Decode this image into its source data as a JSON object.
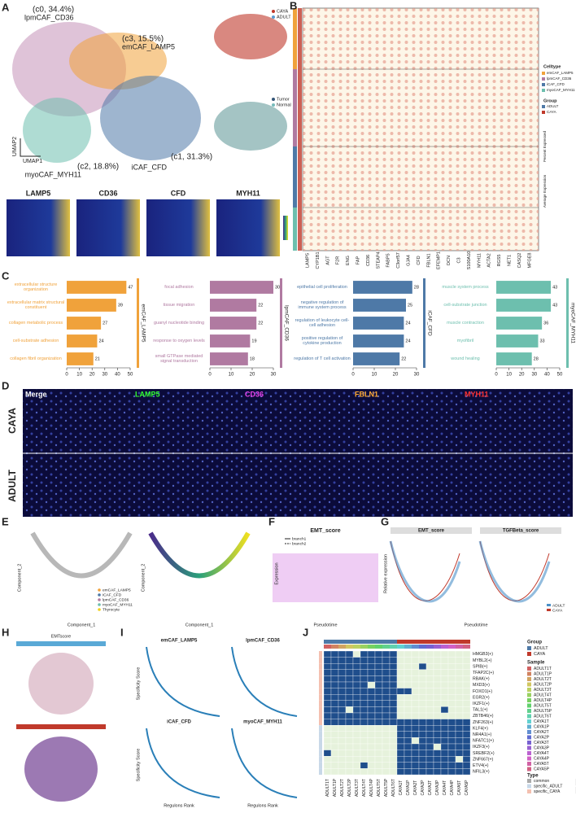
{
  "panel_labels": [
    "A",
    "B",
    "C",
    "D",
    "E",
    "F",
    "G",
    "H",
    "I",
    "J"
  ],
  "panel_a": {
    "clusters": [
      {
        "name": "lpmCAF_CD36",
        "label": "(c0, 34.4%)"
      },
      {
        "name": "emCAF_LAMP5",
        "label": "(c3, 15.5%)"
      },
      {
        "name": "myoCAF_MYH11",
        "label": "(c2, 18.8%)"
      },
      {
        "name": "iCAF_CFD",
        "label": "(c1, 31.3%)"
      }
    ],
    "x_label": "UMAP1",
    "y_label": "UMAP2",
    "genes": [
      "LAMP5",
      "CD36",
      "CFD",
      "MYH11"
    ],
    "legend_group": [
      "CAYA",
      "ADULT"
    ],
    "legend_tissue": [
      "Tumor",
      "Normal"
    ]
  },
  "panel_b": {
    "genes": [
      "LAMP5",
      "CYP1B1",
      "AGT",
      "F2R",
      "ENG",
      "FAP",
      "CD36",
      "STEAP4",
      "FABP5",
      "C3orf57",
      "GJA4",
      "CFD",
      "FBLN1",
      "EFEMP1",
      "DCN",
      "C3",
      "S100A10",
      "MYH11",
      "ACTA2",
      "RGS5",
      "NET1",
      "CASQ2",
      "MFGE8"
    ],
    "celltype_title": "Celltype",
    "celltypes": [
      "emCAF_LAMP5",
      "lpmCAF_CD36",
      "iCAF_CFD",
      "myoCAF_MYH11"
    ],
    "group_title": "Group",
    "groups": [
      "ADULT",
      "CAYA"
    ],
    "size_title": "Percent Expressed",
    "color_title": "Average Expression"
  },
  "chart_data": [
    {
      "type": "bar",
      "orientation": "horizontal",
      "title": "emCAF_LAMP5",
      "color": "#f0a23b",
      "categories": [
        "extracellular structure organization",
        "extracellular matrix structural constituent",
        "collagen metabolic process",
        "cell-substrate adhesion",
        "collagen fibril organization"
      ],
      "values": [
        47,
        39,
        27,
        24,
        21
      ],
      "xlim": [
        0,
        50
      ],
      "xticks": [
        0,
        10,
        20,
        30,
        40,
        50
      ]
    },
    {
      "type": "bar",
      "orientation": "horizontal",
      "title": "lpmCAF_CD36",
      "color": "#b07aa1",
      "categories": [
        "focal adhesion",
        "tissue migration",
        "guanyl nucleotide binding",
        "response to oxygen levels",
        "small GTPase mediated signal transduction"
      ],
      "values": [
        30,
        22,
        22,
        19,
        18
      ],
      "xlim": [
        0,
        30
      ],
      "xticks": [
        0,
        10,
        20,
        30
      ]
    },
    {
      "type": "bar",
      "orientation": "horizontal",
      "title": "iCAF_CFD",
      "color": "#4e79a7",
      "categories": [
        "epithelial cell proliferation",
        "negative regulation of immune system process",
        "regulation of leukocyte cell-cell adhesion",
        "positive regulation of cytokine production",
        "regulation of T cell activation"
      ],
      "values": [
        28,
        25,
        24,
        24,
        22
      ],
      "xlim": [
        0,
        30
      ],
      "xticks": [
        0,
        10,
        20,
        30
      ]
    },
    {
      "type": "bar",
      "orientation": "horizontal",
      "title": "myoCAF_MYH11",
      "color": "#6dbfae",
      "categories": [
        "muscle system process",
        "cell-substrate junction",
        "muscle contraction",
        "myofibril",
        "wound healing"
      ],
      "values": [
        43,
        43,
        36,
        33,
        28
      ],
      "xlim": [
        0,
        50
      ],
      "xticks": [
        0,
        10,
        20,
        30,
        40,
        50
      ]
    }
  ],
  "panel_d": {
    "channels": [
      "Merge",
      "LAMP5",
      "CD36",
      "FBLN1",
      "MYH11"
    ],
    "rows": [
      "CAYA",
      "ADULT"
    ]
  },
  "panel_e": {
    "x_label": "Component_1",
    "y_label": "Component_2",
    "legend": [
      "emCAF_LAMP5",
      "iCAF_CFD",
      "lpmCAF_CD36",
      "myoCAF_MYH11",
      "Thyrocyte"
    ]
  },
  "panel_f": {
    "title": "EMT_score",
    "y_label": "Expression",
    "x_label": "Pseudotime",
    "legend": [
      "branch1",
      "branch2"
    ]
  },
  "panel_g": {
    "titles": [
      "EMT_score",
      "TGFBeta_score"
    ],
    "y_label": "Relative expression",
    "x_label": "Pseudotime",
    "legend": [
      "ADULT",
      "CAYA"
    ]
  },
  "panel_h": {
    "title": "EMTscore"
  },
  "panel_i": {
    "titles": [
      "emCAF_LAMP5",
      "lpmCAF_CD36",
      "iCAF_CFD",
      "myoCAF_MYH11"
    ],
    "y_label": "Specificity Score",
    "x_label": "Regulons Rank"
  },
  "panel_j": {
    "rows": [
      "HMGB3(+)",
      "MYBL2(+)",
      "SPIB(+)",
      "TFAP2C(+)",
      "RBAK(+)",
      "MXD3(+)",
      "FOXO1(+)",
      "EGR2(+)",
      "IKZF1(+)",
      "TAL1(+)",
      "ZBTB46(+)",
      "ZNF263(+)",
      "KLF4(+)",
      "NR4A1(+)",
      "NFATC1(+)",
      "IKZF3(+)",
      "SREBF2(+)",
      "ZNF667(+)",
      "ETV4(+)",
      "NFIL3(+)"
    ],
    "columns": [
      "ADULT1T",
      "ADULT1P",
      "ADULT2T",
      "ADULT2P",
      "ADULT3T",
      "ADULT4T",
      "ADULT4P",
      "ADULT5T",
      "ADULT5P",
      "ADULT6T",
      "CAYA1T",
      "CAYA1P",
      "CAYA2T",
      "CAYA2P",
      "CAYA3T",
      "CAYA3P",
      "CAYA4T",
      "CAYA4P",
      "CAYA5T",
      "CAYA5P"
    ],
    "matrix": [
      [
        1,
        1,
        1,
        1,
        0,
        1,
        1,
        1,
        1,
        1,
        0,
        0,
        0,
        0,
        0,
        0,
        0,
        0,
        0,
        0
      ],
      [
        1,
        1,
        1,
        1,
        1,
        1,
        1,
        1,
        1,
        1,
        0,
        0,
        0,
        0,
        0,
        0,
        0,
        0,
        0,
        0
      ],
      [
        1,
        1,
        1,
        1,
        1,
        1,
        1,
        1,
        1,
        1,
        0,
        0,
        0,
        1,
        0,
        0,
        0,
        0,
        0,
        0
      ],
      [
        1,
        1,
        1,
        1,
        1,
        1,
        1,
        1,
        1,
        1,
        0,
        0,
        0,
        0,
        0,
        0,
        0,
        0,
        0,
        0
      ],
      [
        1,
        1,
        1,
        1,
        1,
        1,
        1,
        1,
        1,
        1,
        0,
        0,
        0,
        0,
        0,
        0,
        0,
        0,
        0,
        0
      ],
      [
        1,
        1,
        1,
        1,
        1,
        1,
        0,
        1,
        1,
        1,
        0,
        0,
        0,
        0,
        0,
        0,
        0,
        0,
        0,
        0
      ],
      [
        1,
        1,
        1,
        1,
        1,
        1,
        1,
        1,
        1,
        1,
        1,
        1,
        0,
        0,
        0,
        0,
        0,
        0,
        0,
        0
      ],
      [
        1,
        1,
        1,
        1,
        1,
        1,
        1,
        1,
        1,
        1,
        0,
        0,
        0,
        0,
        0,
        0,
        0,
        0,
        0,
        0
      ],
      [
        1,
        1,
        1,
        1,
        1,
        1,
        1,
        1,
        1,
        1,
        0,
        0,
        0,
        0,
        0,
        0,
        0,
        0,
        0,
        0
      ],
      [
        1,
        1,
        1,
        0,
        1,
        1,
        1,
        1,
        1,
        1,
        0,
        0,
        0,
        0,
        0,
        0,
        1,
        0,
        0,
        0
      ],
      [
        1,
        1,
        1,
        1,
        1,
        1,
        1,
        1,
        1,
        1,
        0,
        0,
        0,
        0,
        0,
        0,
        0,
        0,
        0,
        0
      ],
      [
        1,
        1,
        1,
        1,
        1,
        1,
        1,
        1,
        1,
        1,
        1,
        1,
        1,
        1,
        1,
        1,
        1,
        1,
        1,
        1
      ],
      [
        0,
        0,
        0,
        0,
        0,
        0,
        0,
        0,
        0,
        0,
        1,
        1,
        1,
        1,
        1,
        1,
        1,
        1,
        1,
        1
      ],
      [
        0,
        0,
        0,
        0,
        0,
        0,
        0,
        0,
        0,
        0,
        1,
        1,
        1,
        1,
        1,
        1,
        1,
        1,
        1,
        1
      ],
      [
        0,
        0,
        0,
        0,
        0,
        0,
        0,
        0,
        0,
        0,
        1,
        1,
        0,
        1,
        1,
        1,
        1,
        1,
        1,
        1
      ],
      [
        0,
        0,
        0,
        0,
        0,
        0,
        0,
        0,
        0,
        0,
        1,
        1,
        1,
        1,
        1,
        0,
        1,
        1,
        1,
        1
      ],
      [
        1,
        0,
        0,
        0,
        0,
        0,
        0,
        0,
        0,
        0,
        1,
        1,
        1,
        1,
        1,
        1,
        1,
        1,
        1,
        1
      ],
      [
        0,
        0,
        0,
        0,
        0,
        0,
        0,
        0,
        0,
        0,
        1,
        1,
        1,
        1,
        1,
        1,
        1,
        1,
        0,
        1
      ],
      [
        0,
        0,
        0,
        0,
        0,
        1,
        0,
        0,
        0,
        0,
        1,
        1,
        1,
        1,
        1,
        1,
        1,
        1,
        1,
        1
      ],
      [
        0,
        0,
        0,
        0,
        0,
        0,
        0,
        0,
        0,
        0,
        1,
        1,
        1,
        1,
        1,
        1,
        1,
        1,
        1,
        1
      ]
    ],
    "on_color": "#1f4e8c",
    "off_color": "#e6f2dc",
    "group_title": "Group",
    "groups": [
      "ADULT",
      "CAYA"
    ],
    "sample_title": "Sample",
    "type_title": "Type",
    "types": [
      "common",
      "specific_ADULT",
      "specific_CAYA"
    ],
    "value_legend": [
      1,
      0
    ]
  }
}
